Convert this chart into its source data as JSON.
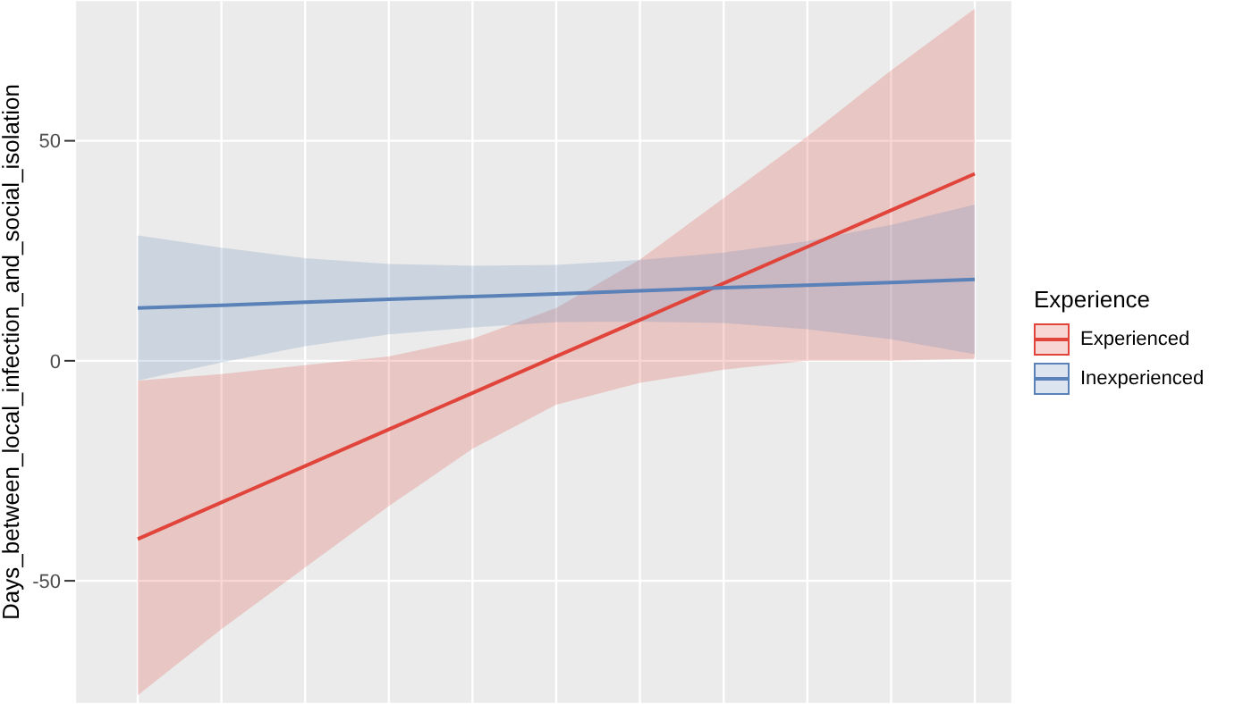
{
  "chart_data": {
    "type": "line",
    "ylabel": "Days_between_local_infection_and_social_isolation",
    "legend_title": "Experience",
    "legend": "right",
    "grid": true,
    "tick_labels": "y",
    "categories": [
      null,
      null,
      null,
      null,
      null,
      null,
      null,
      null,
      null,
      null,
      null
    ],
    "ylim": [
      -78,
      82
    ],
    "yticks": [
      -50,
      0,
      50
    ],
    "series": [
      {
        "name": "Experienced",
        "color": "#e0443a",
        "values": [
          -40.5,
          -32.2,
          -23.9,
          -15.6,
          -7.3,
          1,
          9.3,
          17.6,
          25.9,
          34.2,
          42.5
        ],
        "lower": [
          -76,
          -61,
          -47,
          -33,
          -20,
          -10,
          -5,
          -2,
          0,
          0,
          0.5
        ],
        "upper": [
          -4.5,
          -3,
          -1,
          1,
          5,
          12,
          23,
          37,
          51,
          66,
          80
        ]
      },
      {
        "name": "Inexperienced",
        "color": "#5a82b8",
        "values": [
          12,
          12.6,
          13.3,
          14,
          14.6,
          15.2,
          15.9,
          16.6,
          17.2,
          17.8,
          18.5
        ],
        "lower": [
          -4.5,
          -0.4,
          3.3,
          6,
          7.6,
          8.8,
          8.9,
          8.6,
          7.2,
          4.9,
          1.5
        ],
        "upper": [
          28.5,
          25.7,
          23.3,
          22,
          21.6,
          21.8,
          22.9,
          24.6,
          27.2,
          30.9,
          35.5
        ]
      }
    ]
  }
}
